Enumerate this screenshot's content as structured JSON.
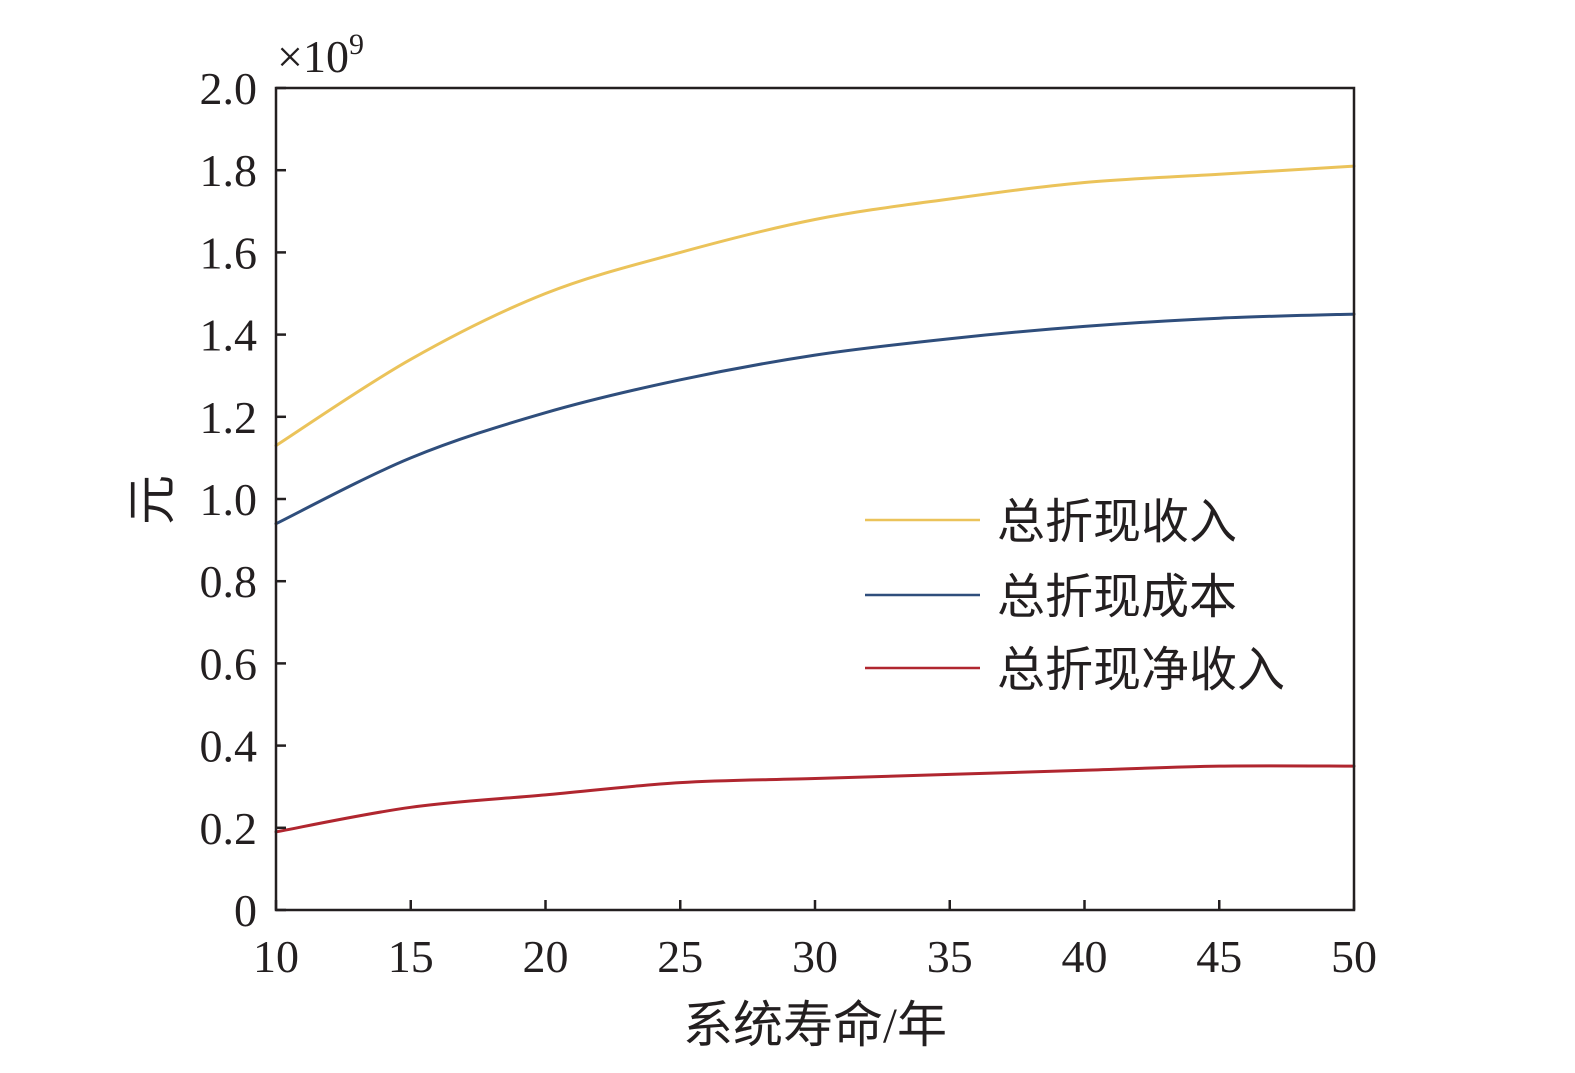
{
  "chart_data": {
    "type": "line",
    "xlabel": "系统寿命/年",
    "ylabel": "元",
    "y_multiplier": {
      "base": "×10",
      "exponent": "9"
    },
    "xlim": [
      10,
      50
    ],
    "ylim": [
      0,
      2.0
    ],
    "x_ticks": [
      10,
      15,
      20,
      25,
      30,
      35,
      40,
      45,
      50
    ],
    "x_tick_labels": [
      "10",
      "15",
      "20",
      "25",
      "30",
      "35",
      "40",
      "45",
      "50"
    ],
    "y_ticks": [
      0,
      0.2,
      0.4,
      0.6,
      0.8,
      1.0,
      1.2,
      1.4,
      1.6,
      1.8,
      2.0
    ],
    "y_tick_labels": [
      "0",
      "0.2",
      "0.4",
      "0.6",
      "0.8",
      "1.0",
      "1.2",
      "1.4",
      "1.6",
      "1.8",
      "2.0"
    ],
    "grid": false,
    "legend": "center-right",
    "x": [
      10,
      15,
      20,
      25,
      30,
      35,
      40,
      45,
      50
    ],
    "series": [
      {
        "name": "总折现收入",
        "color": "#EBC35A",
        "values": [
          1.13,
          1.34,
          1.5,
          1.6,
          1.68,
          1.73,
          1.77,
          1.79,
          1.81
        ]
      },
      {
        "name": "总折现成本",
        "color": "#2F4E7C",
        "values": [
          0.94,
          1.1,
          1.21,
          1.29,
          1.35,
          1.39,
          1.42,
          1.44,
          1.45
        ]
      },
      {
        "name": "总折现净收入",
        "color": "#B0262F",
        "values": [
          0.19,
          0.25,
          0.28,
          0.31,
          0.32,
          0.33,
          0.34,
          0.35,
          0.35
        ]
      }
    ]
  }
}
